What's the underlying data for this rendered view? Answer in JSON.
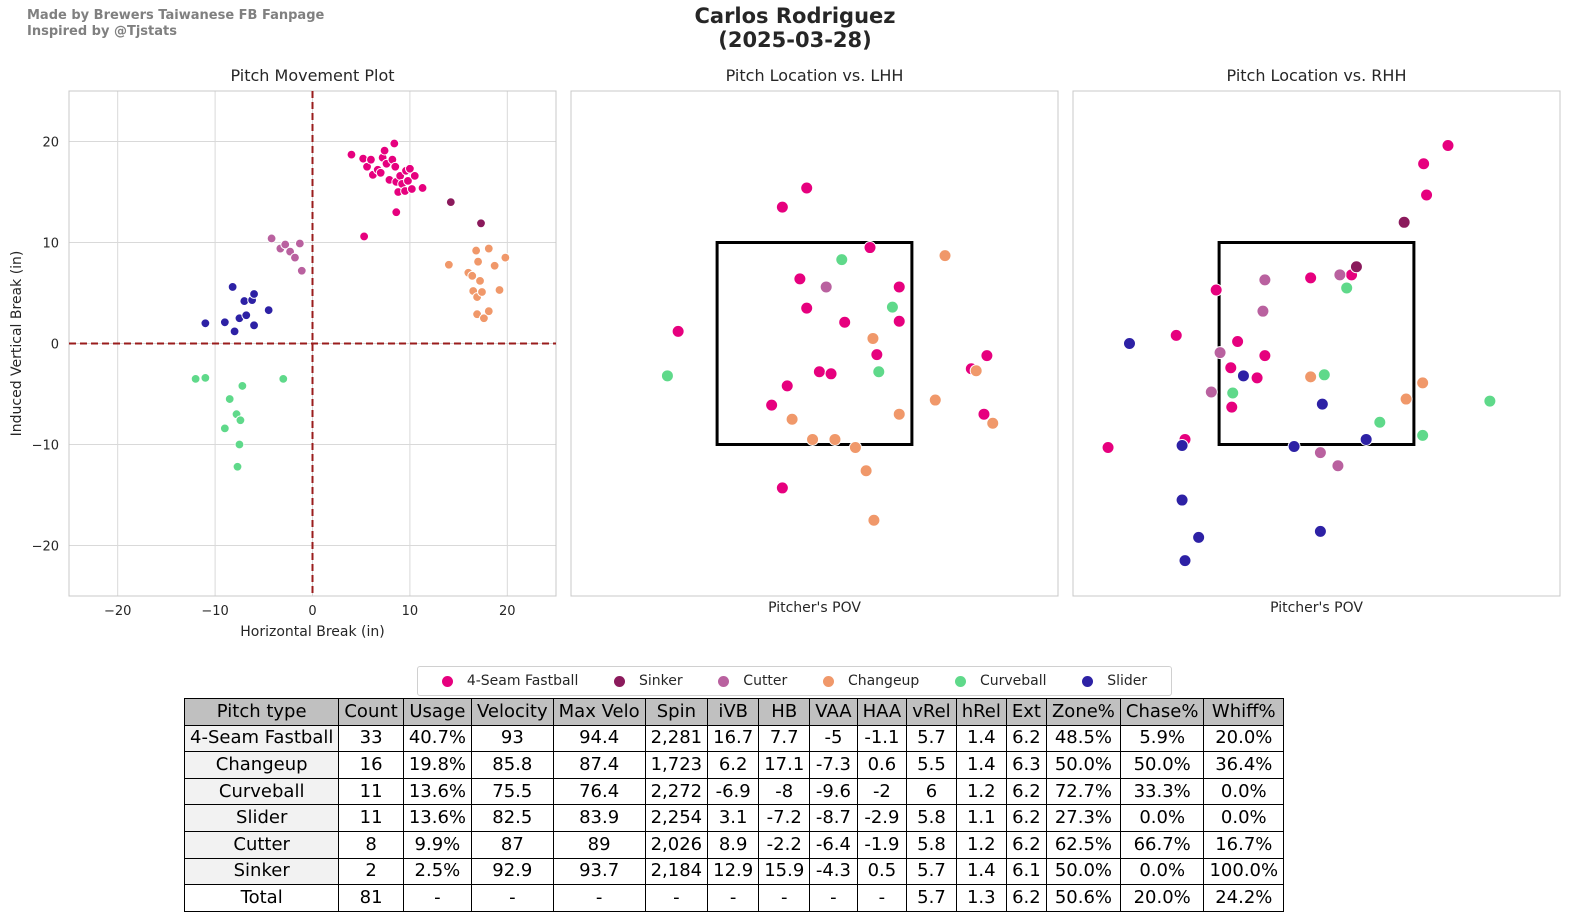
{
  "header": {
    "credit_line1": "Made by Brewers Taiwanese FB Fanpage",
    "credit_line2": "Inspired by @Tjstats",
    "title_line1": "Carlos Rodriguez",
    "title_line2": "(2025-03-28)"
  },
  "colors": {
    "4-Seam Fastball": "#e6007e",
    "Sinker": "#8b1a5c",
    "Cutter": "#b9619f",
    "Changeup": "#f0986a",
    "Curveball": "#5fd98a",
    "Slider": "#2d21a5"
  },
  "legend": [
    "4-Seam Fastball",
    "Sinker",
    "Cutter",
    "Changeup",
    "Curveball",
    "Slider"
  ],
  "chart_data": [
    {
      "type": "scatter",
      "title": "Pitch Movement Plot",
      "xlabel": "Horizontal Break (in)",
      "ylabel": "Induced Vertical Break (in)",
      "xlim": [
        -25,
        25
      ],
      "ylim": [
        -25,
        25
      ],
      "xticks": [
        -20,
        -10,
        0,
        10,
        20
      ],
      "yticks": [
        -20,
        -10,
        0,
        10,
        20
      ],
      "tick_labels_x": [
        "−20",
        "−10",
        "0",
        "10",
        "20"
      ],
      "tick_labels_y": [
        "−20",
        "−10",
        "0",
        "10",
        "20"
      ],
      "grid": true,
      "series": [
        {
          "name": "4-Seam Fastball",
          "points": [
            [
              4,
              18.7
            ],
            [
              5.2,
              18.3
            ],
            [
              5.6,
              17.5
            ],
            [
              6,
              18.2
            ],
            [
              6.2,
              16.7
            ],
            [
              6.7,
              17.2
            ],
            [
              7,
              16.9
            ],
            [
              7.2,
              18.4
            ],
            [
              7.4,
              19.1
            ],
            [
              7.6,
              17.8
            ],
            [
              7.9,
              16.2
            ],
            [
              8.2,
              18.2
            ],
            [
              8.4,
              19.8
            ],
            [
              8.5,
              17.5
            ],
            [
              8.6,
              16
            ],
            [
              8.8,
              15
            ],
            [
              9,
              16.6
            ],
            [
              9.2,
              15.8
            ],
            [
              9.5,
              15.1
            ],
            [
              9.6,
              17.1
            ],
            [
              9.8,
              16.1
            ],
            [
              10,
              17.3
            ],
            [
              10.2,
              15.3
            ],
            [
              10.5,
              16.6
            ],
            [
              8.6,
              13
            ],
            [
              11.3,
              15.4
            ],
            [
              5.3,
              10.6
            ]
          ]
        },
        {
          "name": "Sinker",
          "points": [
            [
              14.2,
              14
            ],
            [
              17.3,
              11.9
            ]
          ]
        },
        {
          "name": "Cutter",
          "points": [
            [
              -4.2,
              10.4
            ],
            [
              -3.3,
              9.4
            ],
            [
              -2.8,
              9.8
            ],
            [
              -2.3,
              9.1
            ],
            [
              -1.8,
              8.5
            ],
            [
              -1.3,
              9.9
            ],
            [
              -1.1,
              7.2
            ]
          ]
        },
        {
          "name": "Changeup",
          "points": [
            [
              14,
              7.8
            ],
            [
              16,
              7
            ],
            [
              16.5,
              5.2
            ],
            [
              16.8,
              9.2
            ],
            [
              16.9,
              4.6
            ],
            [
              17,
              8.1
            ],
            [
              17.2,
              6.2
            ],
            [
              17.4,
              5.1
            ],
            [
              18.1,
              9.4
            ],
            [
              18.7,
              7.7
            ],
            [
              19.2,
              5.3
            ],
            [
              19.8,
              8.5
            ],
            [
              16.4,
              6.7
            ],
            [
              16.9,
              2.9
            ],
            [
              17.6,
              2.5
            ],
            [
              18.1,
              3.2
            ]
          ]
        },
        {
          "name": "Curveball",
          "points": [
            [
              -12,
              -3.5
            ],
            [
              -11,
              -3.4
            ],
            [
              -3,
              -3.5
            ],
            [
              -8.5,
              -5.5
            ],
            [
              -7.2,
              -4.2
            ],
            [
              -7.8,
              -7
            ],
            [
              -7.4,
              -7.6
            ],
            [
              -9,
              -8.4
            ],
            [
              -7.5,
              -10
            ],
            [
              -7.7,
              -12.2
            ]
          ]
        },
        {
          "name": "Slider",
          "points": [
            [
              -11,
              2
            ],
            [
              -9,
              2.1
            ],
            [
              -8.2,
              5.6
            ],
            [
              -8,
              1.2
            ],
            [
              -7.5,
              2.5
            ],
            [
              -7,
              4.2
            ],
            [
              -6.8,
              2.8
            ],
            [
              -6.2,
              4.3
            ],
            [
              -6,
              4.9
            ],
            [
              -6,
              1.8
            ],
            [
              -4.5,
              3.3
            ]
          ]
        }
      ]
    },
    {
      "type": "scatter",
      "title": "Pitch Location vs. LHH",
      "xlabel": "Pitcher's POV",
      "ylabel": "",
      "xlim": [
        -25,
        25
      ],
      "ylim": [
        -25,
        25
      ],
      "strike_zone": {
        "x": [
          -10,
          10
        ],
        "y": [
          -10,
          10
        ]
      },
      "grid": false,
      "series": [
        {
          "name": "4-Seam Fastball",
          "points": [
            [
              -14,
              1.2
            ],
            [
              -3.3,
              13.5
            ],
            [
              -0.8,
              15.4
            ],
            [
              -1.5,
              6.4
            ],
            [
              -0.8,
              3.5
            ],
            [
              0.5,
              -2.8
            ],
            [
              1.7,
              -3
            ],
            [
              3.1,
              2.1
            ],
            [
              5.7,
              9.5
            ],
            [
              8.7,
              5.6
            ],
            [
              8.7,
              2.2
            ],
            [
              -2.8,
              -4.2
            ],
            [
              -4.4,
              -6.1
            ],
            [
              -3.3,
              -14.3
            ],
            [
              16.1,
              -2.5
            ],
            [
              17.7,
              -1.2
            ],
            [
              17.4,
              -7
            ],
            [
              6.4,
              -1.1
            ]
          ]
        },
        {
          "name": "Cutter",
          "points": [
            [
              1.2,
              5.6
            ]
          ]
        },
        {
          "name": "Changeup",
          "points": [
            [
              13.4,
              8.7
            ],
            [
              6,
              0.5
            ],
            [
              12.4,
              -5.6
            ],
            [
              8.7,
              -7
            ],
            [
              16.6,
              -2.7
            ],
            [
              18.3,
              -7.9
            ],
            [
              -2.3,
              -7.5
            ],
            [
              -0.2,
              -9.5
            ],
            [
              2.1,
              -9.5
            ],
            [
              4.2,
              -10.3
            ],
            [
              5.3,
              -12.6
            ],
            [
              6.1,
              -17.5
            ]
          ]
        },
        {
          "name": "Curveball",
          "points": [
            [
              2.8,
              8.3
            ],
            [
              8,
              3.6
            ],
            [
              6.6,
              -2.8
            ],
            [
              -15.1,
              -3.2
            ]
          ]
        }
      ]
    },
    {
      "type": "scatter",
      "title": "Pitch Location vs. RHH",
      "xlabel": "Pitcher's POV",
      "ylabel": "",
      "xlim": [
        -25,
        25
      ],
      "ylim": [
        -25,
        25
      ],
      "strike_zone": {
        "x": [
          -10,
          10
        ],
        "y": [
          -10,
          10
        ]
      },
      "grid": false,
      "series": [
        {
          "name": "4-Seam Fastball",
          "points": [
            [
              -21.4,
              -10.3
            ],
            [
              -14.4,
              0.8
            ],
            [
              -13.5,
              -9.5
            ],
            [
              -10.3,
              5.3
            ],
            [
              -8.1,
              0.2
            ],
            [
              -8.8,
              -2.4
            ],
            [
              -8.7,
              -6.3
            ],
            [
              -6.1,
              -3.4
            ],
            [
              -5.3,
              -1.2
            ],
            [
              -0.6,
              6.5
            ],
            [
              3.6,
              6.8
            ],
            [
              11,
              17.8
            ],
            [
              11.3,
              14.7
            ],
            [
              13.5,
              19.6
            ]
          ]
        },
        {
          "name": "Sinker",
          "points": [
            [
              9,
              12
            ],
            [
              4.1,
              7.6
            ]
          ]
        },
        {
          "name": "Cutter",
          "points": [
            [
              -9.9,
              -0.9
            ],
            [
              -10.8,
              -4.8
            ],
            [
              -5.3,
              6.3
            ],
            [
              -5.5,
              3.2
            ],
            [
              2.4,
              6.8
            ],
            [
              0.4,
              -10.8
            ],
            [
              2.2,
              -12.1
            ]
          ]
        },
        {
          "name": "Changeup",
          "points": [
            [
              -0.6,
              -3.3
            ],
            [
              9.2,
              -5.5
            ],
            [
              10.9,
              -3.9
            ]
          ]
        },
        {
          "name": "Curveball",
          "points": [
            [
              -8.6,
              -4.9
            ],
            [
              0.8,
              -3.1
            ],
            [
              3.1,
              5.5
            ],
            [
              6.5,
              -7.8
            ],
            [
              10.9,
              -9.1
            ],
            [
              17.8,
              -5.7
            ]
          ]
        },
        {
          "name": "Slider",
          "points": [
            [
              -19.2,
              0
            ],
            [
              -13.8,
              -10.1
            ],
            [
              -13.8,
              -15.5
            ],
            [
              -12.1,
              -19.2
            ],
            [
              -13.5,
              -21.5
            ],
            [
              -7.5,
              -3.2
            ],
            [
              -2.3,
              -10.2
            ],
            [
              0.6,
              -6
            ],
            [
              0.4,
              -18.6
            ],
            [
              5.1,
              -9.5
            ]
          ]
        }
      ]
    },
    {
      "type": "table",
      "columns": [
        "Pitch type",
        "Count",
        "Usage",
        "Velocity",
        "Max Velo",
        "Spin",
        "iVB",
        "HB",
        "VAA",
        "HAA",
        "vRel",
        "hRel",
        "Ext",
        "Zone%",
        "Chase%",
        "Whiff%"
      ],
      "rows": [
        [
          "4-Seam Fastball",
          "33",
          "40.7%",
          "93",
          "94.4",
          "2,281",
          "16.7",
          "7.7",
          "-5",
          "-1.1",
          "5.7",
          "1.4",
          "6.2",
          "48.5%",
          "5.9%",
          "20.0%"
        ],
        [
          "Changeup",
          "16",
          "19.8%",
          "85.8",
          "87.4",
          "1,723",
          "6.2",
          "17.1",
          "-7.3",
          "0.6",
          "5.5",
          "1.4",
          "6.3",
          "50.0%",
          "50.0%",
          "36.4%"
        ],
        [
          "Curveball",
          "11",
          "13.6%",
          "75.5",
          "76.4",
          "2,272",
          "-6.9",
          "-8",
          "-9.6",
          "-2",
          "6",
          "1.2",
          "6.2",
          "72.7%",
          "33.3%",
          "0.0%"
        ],
        [
          "Slider",
          "11",
          "13.6%",
          "82.5",
          "83.9",
          "2,254",
          "3.1",
          "-7.2",
          "-8.7",
          "-2.9",
          "5.8",
          "1.1",
          "6.2",
          "27.3%",
          "0.0%",
          "0.0%"
        ],
        [
          "Cutter",
          "8",
          "9.9%",
          "87",
          "89",
          "2,026",
          "8.9",
          "-2.2",
          "-6.4",
          "-1.9",
          "5.8",
          "1.2",
          "6.2",
          "62.5%",
          "66.7%",
          "16.7%"
        ],
        [
          "Sinker",
          "2",
          "2.5%",
          "92.9",
          "93.7",
          "2,184",
          "12.9",
          "15.9",
          "-4.3",
          "0.5",
          "5.7",
          "1.4",
          "6.1",
          "50.0%",
          "0.0%",
          "100.0%"
        ],
        [
          "Total",
          "81",
          "-",
          "-",
          "-",
          "-",
          "-",
          "-",
          "-",
          "-",
          "5.7",
          "1.3",
          "6.2",
          "50.6%",
          "20.0%",
          "24.2%"
        ]
      ]
    }
  ]
}
